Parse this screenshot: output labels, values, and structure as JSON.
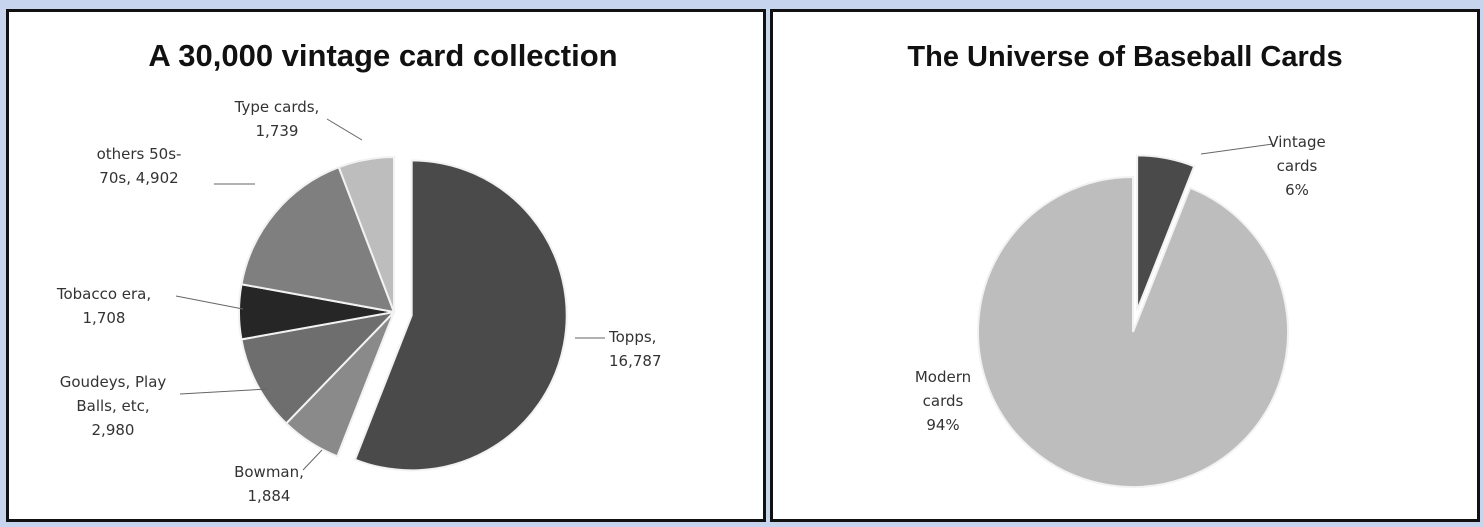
{
  "chart_data": [
    {
      "type": "pie",
      "title": "A 30,000 vintage card collection",
      "series": [
        {
          "label_lines": [
            "Topps,",
            "16,787"
          ],
          "value": 16787,
          "color": "#4a4a4a",
          "exploded": true
        },
        {
          "label_lines": [
            "Bowman,",
            "1,884"
          ],
          "value": 1884,
          "color": "#8a8a8a",
          "exploded": false
        },
        {
          "label_lines": [
            "Goudeys, Play",
            "Balls, etc,",
            "2,980"
          ],
          "value": 2980,
          "color": "#6e6e6e",
          "exploded": false
        },
        {
          "label_lines": [
            "Tobacco era,",
            "1,708"
          ],
          "value": 1708,
          "color": "#262626",
          "exploded": false
        },
        {
          "label_lines": [
            "others 50s-",
            "70s,  4,902"
          ],
          "value": 4902,
          "color": "#7f7f7f",
          "exploded": false
        },
        {
          "label_lines": [
            "Type cards,",
            "1,739"
          ],
          "value": 1739,
          "color": "#bdbdbd",
          "exploded": false
        }
      ]
    },
    {
      "type": "pie",
      "title": "The Universe of Baseball Cards",
      "series": [
        {
          "label_lines": [
            "Vintage",
            "cards",
            "6%"
          ],
          "value": 6,
          "color": "#4a4a4a",
          "exploded": true
        },
        {
          "label_lines": [
            "Modern",
            "cards",
            "94%"
          ],
          "value": 94,
          "color": "#bdbdbd",
          "exploded": false
        }
      ]
    }
  ]
}
